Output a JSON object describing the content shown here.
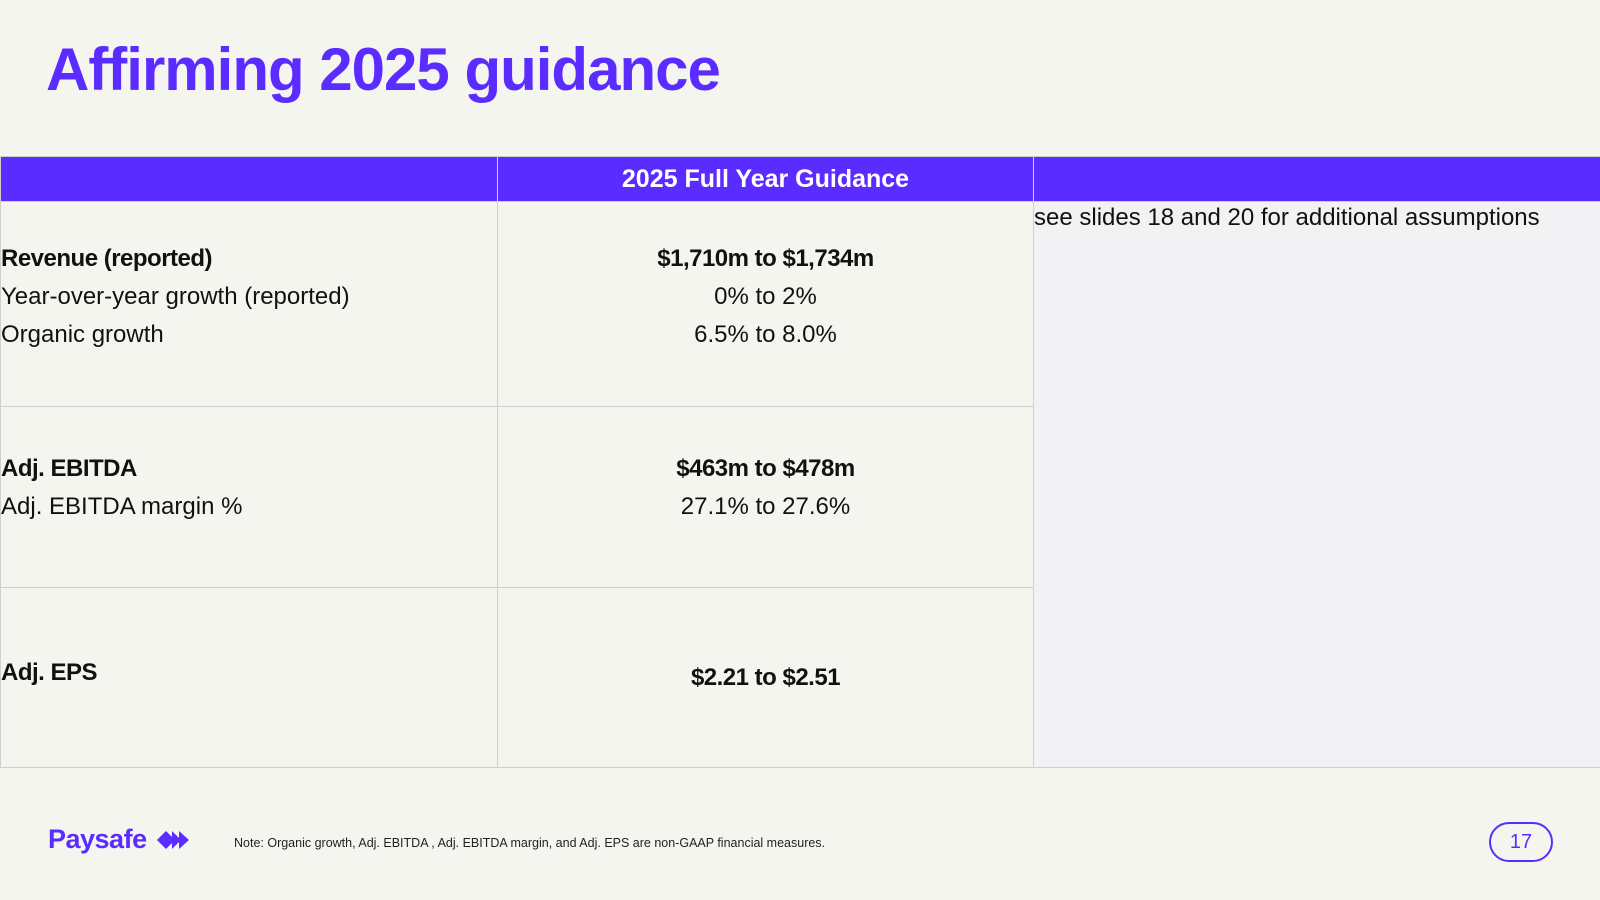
{
  "title": "Affirming 2025 guidance",
  "table": {
    "header": [
      "",
      "2025 Full Year Guidance",
      ""
    ],
    "rows": [
      {
        "labels": [
          "Revenue (reported)",
          "Year-over-year growth (reported)",
          "Organic growth"
        ],
        "values": [
          "$1,710m to $1,734m",
          "0% to 2%",
          "6.5% to 8.0%"
        ]
      },
      {
        "labels": [
          "Adj. EBITDA",
          "Adj. EBITDA margin %"
        ],
        "values": [
          "$463m to $478m",
          "27.1% to 27.6%"
        ]
      },
      {
        "labels": [
          "Adj. EPS"
        ],
        "values": [
          "$2.21 to $2.51"
        ]
      }
    ],
    "side_note": "see slides 18 and 20 for additional assumptions"
  },
  "footer": {
    "logo": "Paysafe",
    "note": "Note: Organic growth, Adj. EBITDA , Adj. EBITDA margin, and Adj. EPS are non-GAAP financial measures.",
    "page_number": "17"
  },
  "colors": {
    "accent": "#5b2cff",
    "background": "#f5f5f0"
  }
}
